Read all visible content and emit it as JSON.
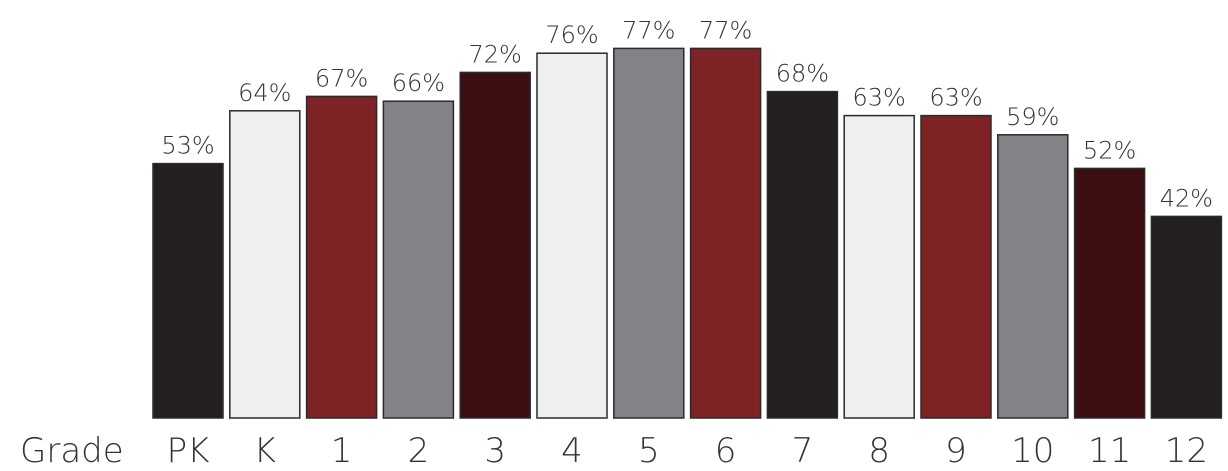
{
  "chart_data": {
    "type": "bar",
    "xlabel": "Grade",
    "categories": [
      "PK",
      "K",
      "1",
      "2",
      "3",
      "4",
      "5",
      "6",
      "7",
      "8",
      "9",
      "10",
      "11",
      "12"
    ],
    "values": [
      53,
      64,
      67,
      66,
      72,
      76,
      77,
      77,
      68,
      63,
      63,
      59,
      52,
      42
    ],
    "value_labels": [
      "53%",
      "64%",
      "67%",
      "66%",
      "72%",
      "76%",
      "77%",
      "77%",
      "68%",
      "63%",
      "63%",
      "59%",
      "52%",
      "42%"
    ],
    "colors": [
      "#231f20",
      "#efefef",
      "#7d2325",
      "#828386",
      "#3d0e11",
      "#efefef",
      "#828386",
      "#7d2325",
      "#231f20",
      "#efefef",
      "#7d2325",
      "#828386",
      "#3d0e11",
      "#231f20"
    ],
    "ylim": [
      0,
      100
    ],
    "grid": false,
    "legend": "none"
  }
}
